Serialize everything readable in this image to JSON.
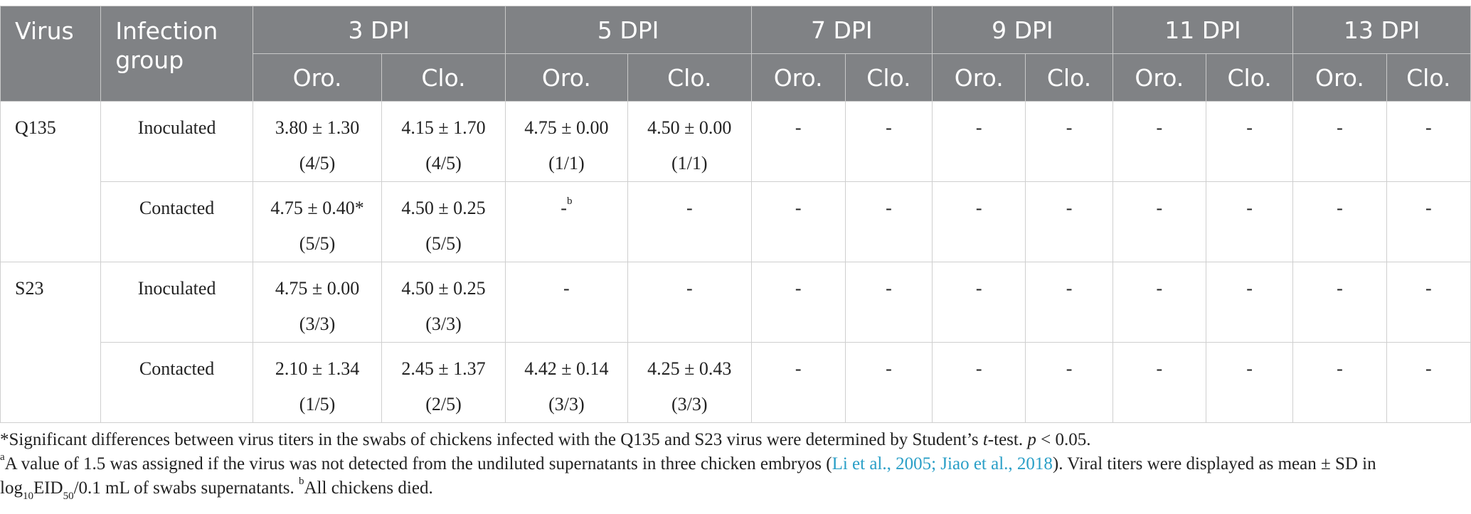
{
  "header": {
    "virus": "Virus",
    "infection_group": "Infection group",
    "dpi": [
      "3 DPI",
      "5 DPI",
      "7 DPI",
      "9 DPI",
      "11 DPI",
      "13 DPI"
    ],
    "oro": "Oro.",
    "clo": "Clo."
  },
  "rows": [
    {
      "virus": "Q135",
      "group": "Inoculated",
      "cells": [
        {
          "v": "3.80 ± 1.30",
          "n": "(4/5)"
        },
        {
          "v": "4.15 ± 1.70",
          "n": "(4/5)"
        },
        {
          "v": "4.75 ± 0.00",
          "n": "(1/1)"
        },
        {
          "v": "4.50 ± 0.00",
          "n": "(1/1)"
        },
        {
          "v": "-",
          "n": ""
        },
        {
          "v": "-",
          "n": ""
        },
        {
          "v": "-",
          "n": ""
        },
        {
          "v": "-",
          "n": ""
        },
        {
          "v": "-",
          "n": ""
        },
        {
          "v": "-",
          "n": ""
        },
        {
          "v": "-",
          "n": ""
        },
        {
          "v": "-",
          "n": ""
        }
      ]
    },
    {
      "virus": "",
      "group": "Contacted",
      "cells": [
        {
          "v": "4.75 ± 0.40*",
          "n": "(5/5)"
        },
        {
          "v": "4.50 ± 0.25",
          "n": "(5/5)"
        },
        {
          "v": "-",
          "sup": "b",
          "n": ""
        },
        {
          "v": "-",
          "n": ""
        },
        {
          "v": "-",
          "n": ""
        },
        {
          "v": "-",
          "n": ""
        },
        {
          "v": "-",
          "n": ""
        },
        {
          "v": "-",
          "n": ""
        },
        {
          "v": "-",
          "n": ""
        },
        {
          "v": "-",
          "n": ""
        },
        {
          "v": "-",
          "n": ""
        },
        {
          "v": "-",
          "n": ""
        }
      ]
    },
    {
      "virus": "S23",
      "group": "Inoculated",
      "cells": [
        {
          "v": "4.75 ± 0.00",
          "n": "(3/3)"
        },
        {
          "v": "4.50 ± 0.25",
          "n": "(3/3)"
        },
        {
          "v": "-",
          "n": ""
        },
        {
          "v": "-",
          "n": ""
        },
        {
          "v": "-",
          "n": ""
        },
        {
          "v": "-",
          "n": ""
        },
        {
          "v": "-",
          "n": ""
        },
        {
          "v": "-",
          "n": ""
        },
        {
          "v": "-",
          "n": ""
        },
        {
          "v": "-",
          "n": ""
        },
        {
          "v": "-",
          "n": ""
        },
        {
          "v": "-",
          "n": ""
        }
      ]
    },
    {
      "virus": "",
      "group": "Contacted",
      "cells": [
        {
          "v": "2.10 ± 1.34",
          "n": "(1/5)"
        },
        {
          "v": "2.45 ± 1.37",
          "n": "(2/5)"
        },
        {
          "v": "4.42 ± 0.14",
          "n": "(3/3)"
        },
        {
          "v": "4.25 ± 0.43",
          "n": "(3/3)"
        },
        {
          "v": "-",
          "n": ""
        },
        {
          "v": "-",
          "n": ""
        },
        {
          "v": "-",
          "n": ""
        },
        {
          "v": "-",
          "n": ""
        },
        {
          "v": "-",
          "n": ""
        },
        {
          "v": "-",
          "n": ""
        },
        {
          "v": "-",
          "n": ""
        },
        {
          "v": "-",
          "n": ""
        }
      ]
    }
  ],
  "footnotes": {
    "note1_a": "*Significant differences between virus titers in the swabs of chickens infected with the Q135 and S23 virus were determined by Student’s ",
    "note1_t": "t",
    "note1_b": "-test. ",
    "note1_p": "p",
    "note1_c": " < 0.05.",
    "note2_sup": "a",
    "note2_a": "A value of 1.5 was assigned if the virus was not detected from the undiluted supernatants in three chicken embryos (",
    "note2_link": "Li et al., 2005; Jiao et al., 2018",
    "note2_b": "). Viral titers were displayed as mean ± SD in",
    "note3_a": "log",
    "note3_sub1": "10",
    "note3_b": "EID",
    "note3_sub2": "50",
    "note3_c": "/0.1 mL of swabs supernatants. ",
    "note3_sup": "b",
    "note3_d": "All chickens died."
  },
  "colors": {
    "header_bg": "#808285",
    "link": "#2a9fc7"
  }
}
